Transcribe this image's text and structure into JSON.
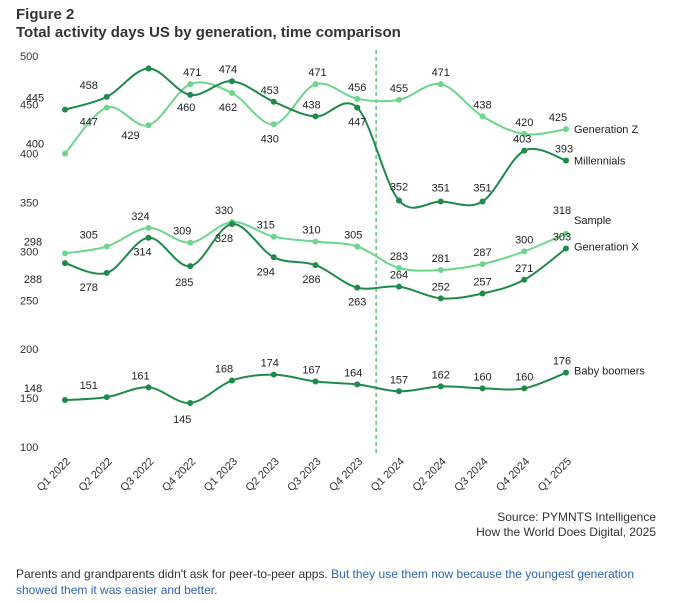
{
  "figure_label": "Figure 2",
  "title": "Total activity days US by generation, time comparison",
  "source_line1": "Source: PYMNTS Intelligence",
  "source_line2": "How the World Does Digital, 2025",
  "caption_text": "Parents and grandparents didn't ask for peer-to-peer apps. ",
  "caption_link": "But they use them now because the youngest generation showed them it was easier and better.",
  "colors": {
    "light_green": "#6ed58c",
    "dark_green": "#1f8a4c",
    "divider": "#5cc57e",
    "grid": "#dddddd",
    "link": "#2a63b0"
  },
  "chart_data": {
    "type": "line",
    "title": "Total activity days US by generation, time comparison",
    "xlabel": "",
    "ylabel": "",
    "ylim": [
      100,
      500
    ],
    "yticks": [
      100,
      150,
      200,
      250,
      300,
      350,
      400,
      450,
      500
    ],
    "categories": [
      "Q1 2022",
      "Q2 2022",
      "Q3 2022",
      "Q4 2022",
      "Q1 2023",
      "Q2 2023",
      "Q3 2023",
      "Q4 2023",
      "Q1 2024",
      "Q2 2024",
      "Q3 2024",
      "Q4 2024",
      "Q1 2025"
    ],
    "divider_after_category": "Q4 2023",
    "grid": false,
    "series": [
      {
        "name": "Generation Z",
        "color": "#6ed58c",
        "values": [
          400,
          447,
          429,
          471,
          462,
          430,
          471,
          456,
          455,
          471,
          438,
          420,
          425
        ]
      },
      {
        "name": "Millennials",
        "color": "#1f8a4c",
        "values": [
          445,
          458,
          487,
          460,
          474,
          453,
          438,
          447,
          352,
          351,
          351,
          403,
          393
        ]
      },
      {
        "name": "Sample",
        "color": "#6ed58c",
        "values": [
          298,
          305,
          324,
          309,
          330,
          315,
          310,
          305,
          283,
          281,
          287,
          300,
          318
        ]
      },
      {
        "name": "Generation X",
        "color": "#1f8a4c",
        "values": [
          288,
          278,
          314,
          285,
          328,
          294,
          286,
          263,
          264,
          252,
          257,
          271,
          303
        ]
      },
      {
        "name": "Baby boomers",
        "color": "#1f8a4c",
        "values": [
          148,
          151,
          161,
          145,
          168,
          174,
          167,
          164,
          157,
          162,
          160,
          160,
          176
        ]
      }
    ],
    "data_labels": [
      {
        "series": "Generation Z",
        "labels": [
          "400",
          "447",
          "429",
          "471",
          "462",
          "430",
          "471",
          "456",
          "455",
          "471",
          "438",
          "420",
          "425"
        ]
      },
      {
        "series": "Millennials",
        "labels": [
          "445",
          "458",
          "",
          "460",
          "474",
          "453",
          "438",
          "447",
          "352",
          "351",
          "351",
          "403",
          "393"
        ]
      },
      {
        "series": "Sample",
        "labels": [
          "298",
          "305",
          "324",
          "309",
          "330",
          "315",
          "310",
          "305",
          "283",
          "281",
          "287",
          "300",
          "318"
        ]
      },
      {
        "series": "Generation X",
        "labels": [
          "288",
          "278",
          "314",
          "285",
          "328",
          "294",
          "286",
          "263",
          "264",
          "252",
          "257",
          "271",
          "303"
        ]
      },
      {
        "series": "Baby boomers",
        "labels": [
          "148",
          "151",
          "161",
          "145",
          "168",
          "174",
          "167",
          "164",
          "157",
          "162",
          "160",
          "160",
          "176"
        ]
      }
    ]
  }
}
